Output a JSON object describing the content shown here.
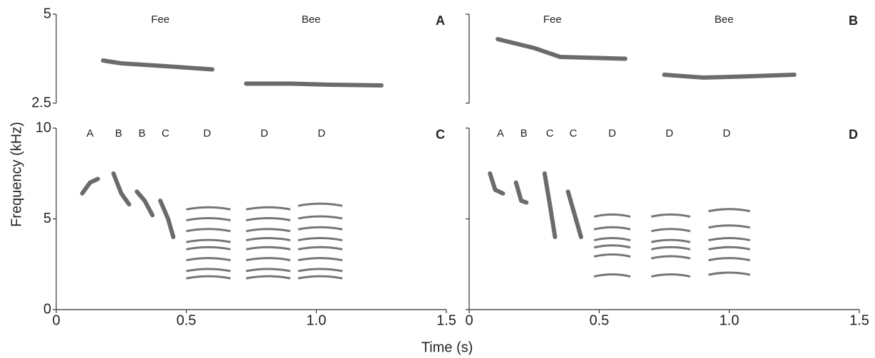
{
  "ylabel": "Frequency (kHz)",
  "xlabel": "Time (s)",
  "chart_data": [
    {
      "type": "spectrogram",
      "panel": "A",
      "xlim": [
        0,
        1.5
      ],
      "ylim": [
        2.5,
        5
      ],
      "yticks": [
        2.5,
        5
      ],
      "ytick_labels": true,
      "xticks": [],
      "bottom_axis": false,
      "color": "#3a3a3a",
      "annotations": [
        {
          "text": "Fee",
          "x": 0.4
        },
        {
          "text": "Bee",
          "x": 0.98
        }
      ],
      "traces": [
        {
          "x": [
            0.18,
            0.25,
            0.4,
            0.6
          ],
          "values": [
            3.7,
            3.62,
            3.55,
            3.45
          ]
        },
        {
          "x": [
            0.73,
            0.9,
            1.05,
            1.25
          ],
          "values": [
            3.05,
            3.05,
            3.02,
            3.0
          ]
        }
      ],
      "stacks": []
    },
    {
      "type": "spectrogram",
      "panel": "B",
      "xlim": [
        0,
        1.5
      ],
      "ylim": [
        2.5,
        5
      ],
      "yticks": [
        2.5,
        5
      ],
      "ytick_labels": false,
      "xticks": [],
      "bottom_axis": false,
      "color": "#3a3a3a",
      "annotations": [
        {
          "text": "Fee",
          "x": 0.32
        },
        {
          "text": "Bee",
          "x": 0.98
        }
      ],
      "traces": [
        {
          "x": [
            0.11,
            0.25,
            0.35,
            0.6
          ],
          "values": [
            4.3,
            4.05,
            3.8,
            3.75
          ]
        },
        {
          "x": [
            0.75,
            0.9,
            1.05,
            1.25
          ],
          "values": [
            3.3,
            3.22,
            3.25,
            3.3
          ]
        }
      ],
      "stacks": []
    },
    {
      "type": "spectrogram",
      "panel": "C",
      "xlim": [
        0,
        1.5
      ],
      "ylim": [
        0,
        10
      ],
      "yticks": [
        0,
        5,
        10
      ],
      "ytick_labels": true,
      "bottom_axis": true,
      "color": "#3a3a3a",
      "xticks": [
        0,
        0.5,
        {
          "value": 1.0,
          "label": "1.0"
        },
        1.5
      ],
      "annotations": [
        {
          "text": "A",
          "x": 0.13
        },
        {
          "text": "B",
          "x": 0.24
        },
        {
          "text": "B",
          "x": 0.33
        },
        {
          "text": "C",
          "x": 0.42
        },
        {
          "text": "D",
          "x": 0.58
        },
        {
          "text": "D",
          "x": 0.8
        },
        {
          "text": "D",
          "x": 1.02
        }
      ],
      "traces": [
        {
          "x": [
            0.1,
            0.13,
            0.16
          ],
          "values": [
            6.4,
            7.0,
            7.2
          ]
        },
        {
          "x": [
            0.22,
            0.25,
            0.28
          ],
          "values": [
            7.5,
            6.4,
            5.8
          ]
        },
        {
          "x": [
            0.31,
            0.34,
            0.37
          ],
          "values": [
            6.5,
            6.0,
            5.2
          ]
        },
        {
          "x": [
            0.4,
            0.43,
            0.45
          ],
          "values": [
            6.0,
            5.0,
            4.0
          ]
        }
      ],
      "stacks": [
        {
          "x": [
            0.5,
            0.67
          ],
          "harmonics": [
            1.8,
            2.2,
            2.8,
            3.4,
            3.8,
            4.4,
            5.0,
            5.6
          ]
        },
        {
          "x": [
            0.73,
            0.9
          ],
          "harmonics": [
            1.8,
            2.2,
            2.8,
            3.4,
            3.9,
            4.4,
            5.0,
            5.6
          ]
        },
        {
          "x": [
            0.93,
            1.1
          ],
          "harmonics": [
            1.8,
            2.2,
            2.8,
            3.4,
            3.9,
            4.5,
            5.1,
            5.8
          ]
        }
      ]
    },
    {
      "type": "spectrogram",
      "panel": "D",
      "xlim": [
        0,
        1.5
      ],
      "ylim": [
        0,
        10
      ],
      "yticks": [
        0,
        5,
        10
      ],
      "ytick_labels": false,
      "bottom_axis": true,
      "color": "#3a3a3a",
      "xticks": [
        0,
        0.5,
        {
          "value": 1.0,
          "label": "1.0"
        },
        1.5
      ],
      "annotations": [
        {
          "text": "A",
          "x": 0.12
        },
        {
          "text": "B",
          "x": 0.21
        },
        {
          "text": "C",
          "x": 0.31
        },
        {
          "text": "C",
          "x": 0.4
        },
        {
          "text": "D",
          "x": 0.55
        },
        {
          "text": "D",
          "x": 0.77
        },
        {
          "text": "D",
          "x": 0.99
        }
      ],
      "traces": [
        {
          "x": [
            0.08,
            0.1,
            0.13
          ],
          "values": [
            7.5,
            6.6,
            6.4
          ]
        },
        {
          "x": [
            0.18,
            0.2,
            0.22
          ],
          "values": [
            7.0,
            6.0,
            5.9
          ]
        },
        {
          "x": [
            0.29,
            0.31,
            0.33
          ],
          "values": [
            7.5,
            5.8,
            4.0
          ]
        },
        {
          "x": [
            0.38,
            0.4,
            0.43
          ],
          "values": [
            6.5,
            5.5,
            4.0
          ]
        }
      ],
      "stacks": [
        {
          "x": [
            0.48,
            0.62
          ],
          "harmonics": [
            1.9,
            3.0,
            3.5,
            3.9,
            4.5,
            5.2
          ]
        },
        {
          "x": [
            0.7,
            0.85
          ],
          "harmonics": [
            1.9,
            2.9,
            3.4,
            3.8,
            4.4,
            5.2
          ]
        },
        {
          "x": [
            0.92,
            1.08
          ],
          "harmonics": [
            2.0,
            2.8,
            3.4,
            3.9,
            4.6,
            5.5
          ]
        }
      ]
    }
  ]
}
